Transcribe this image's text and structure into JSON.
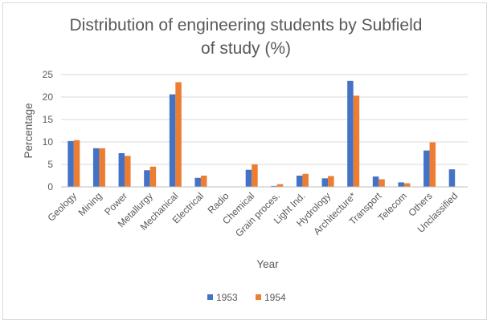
{
  "chart_data": {
    "type": "bar",
    "title_lines": [
      "Distribution of engineering students by Subfield",
      "of study (%)"
    ],
    "xlabel": "Year",
    "ylabel": "Percentage",
    "ylim": [
      0,
      25
    ],
    "yticks": [
      0,
      5,
      10,
      15,
      20,
      25
    ],
    "grid": true,
    "legend_position": "bottom",
    "categories": [
      "Geology",
      "Mining",
      "Power",
      "Metallurgy",
      "Mechanical",
      "Electrical",
      "Radio",
      "Chemical",
      "Grain proces.",
      "Light Ind.",
      "Hydrology",
      "Architecture*",
      "Transport",
      "Telecom",
      "Others",
      "Unclassified"
    ],
    "series": [
      {
        "name": "1953",
        "color": "#4472c4",
        "values": [
          10.2,
          8.6,
          7.5,
          3.7,
          20.6,
          2.0,
          null,
          3.8,
          0.2,
          2.5,
          1.9,
          23.6,
          2.3,
          1.0,
          8.1,
          3.9
        ]
      },
      {
        "name": "1954",
        "color": "#ed7d31",
        "values": [
          10.4,
          8.6,
          6.9,
          4.5,
          23.3,
          2.5,
          null,
          5.0,
          0.6,
          2.9,
          2.4,
          20.3,
          1.7,
          0.8,
          9.9,
          null
        ]
      }
    ]
  }
}
